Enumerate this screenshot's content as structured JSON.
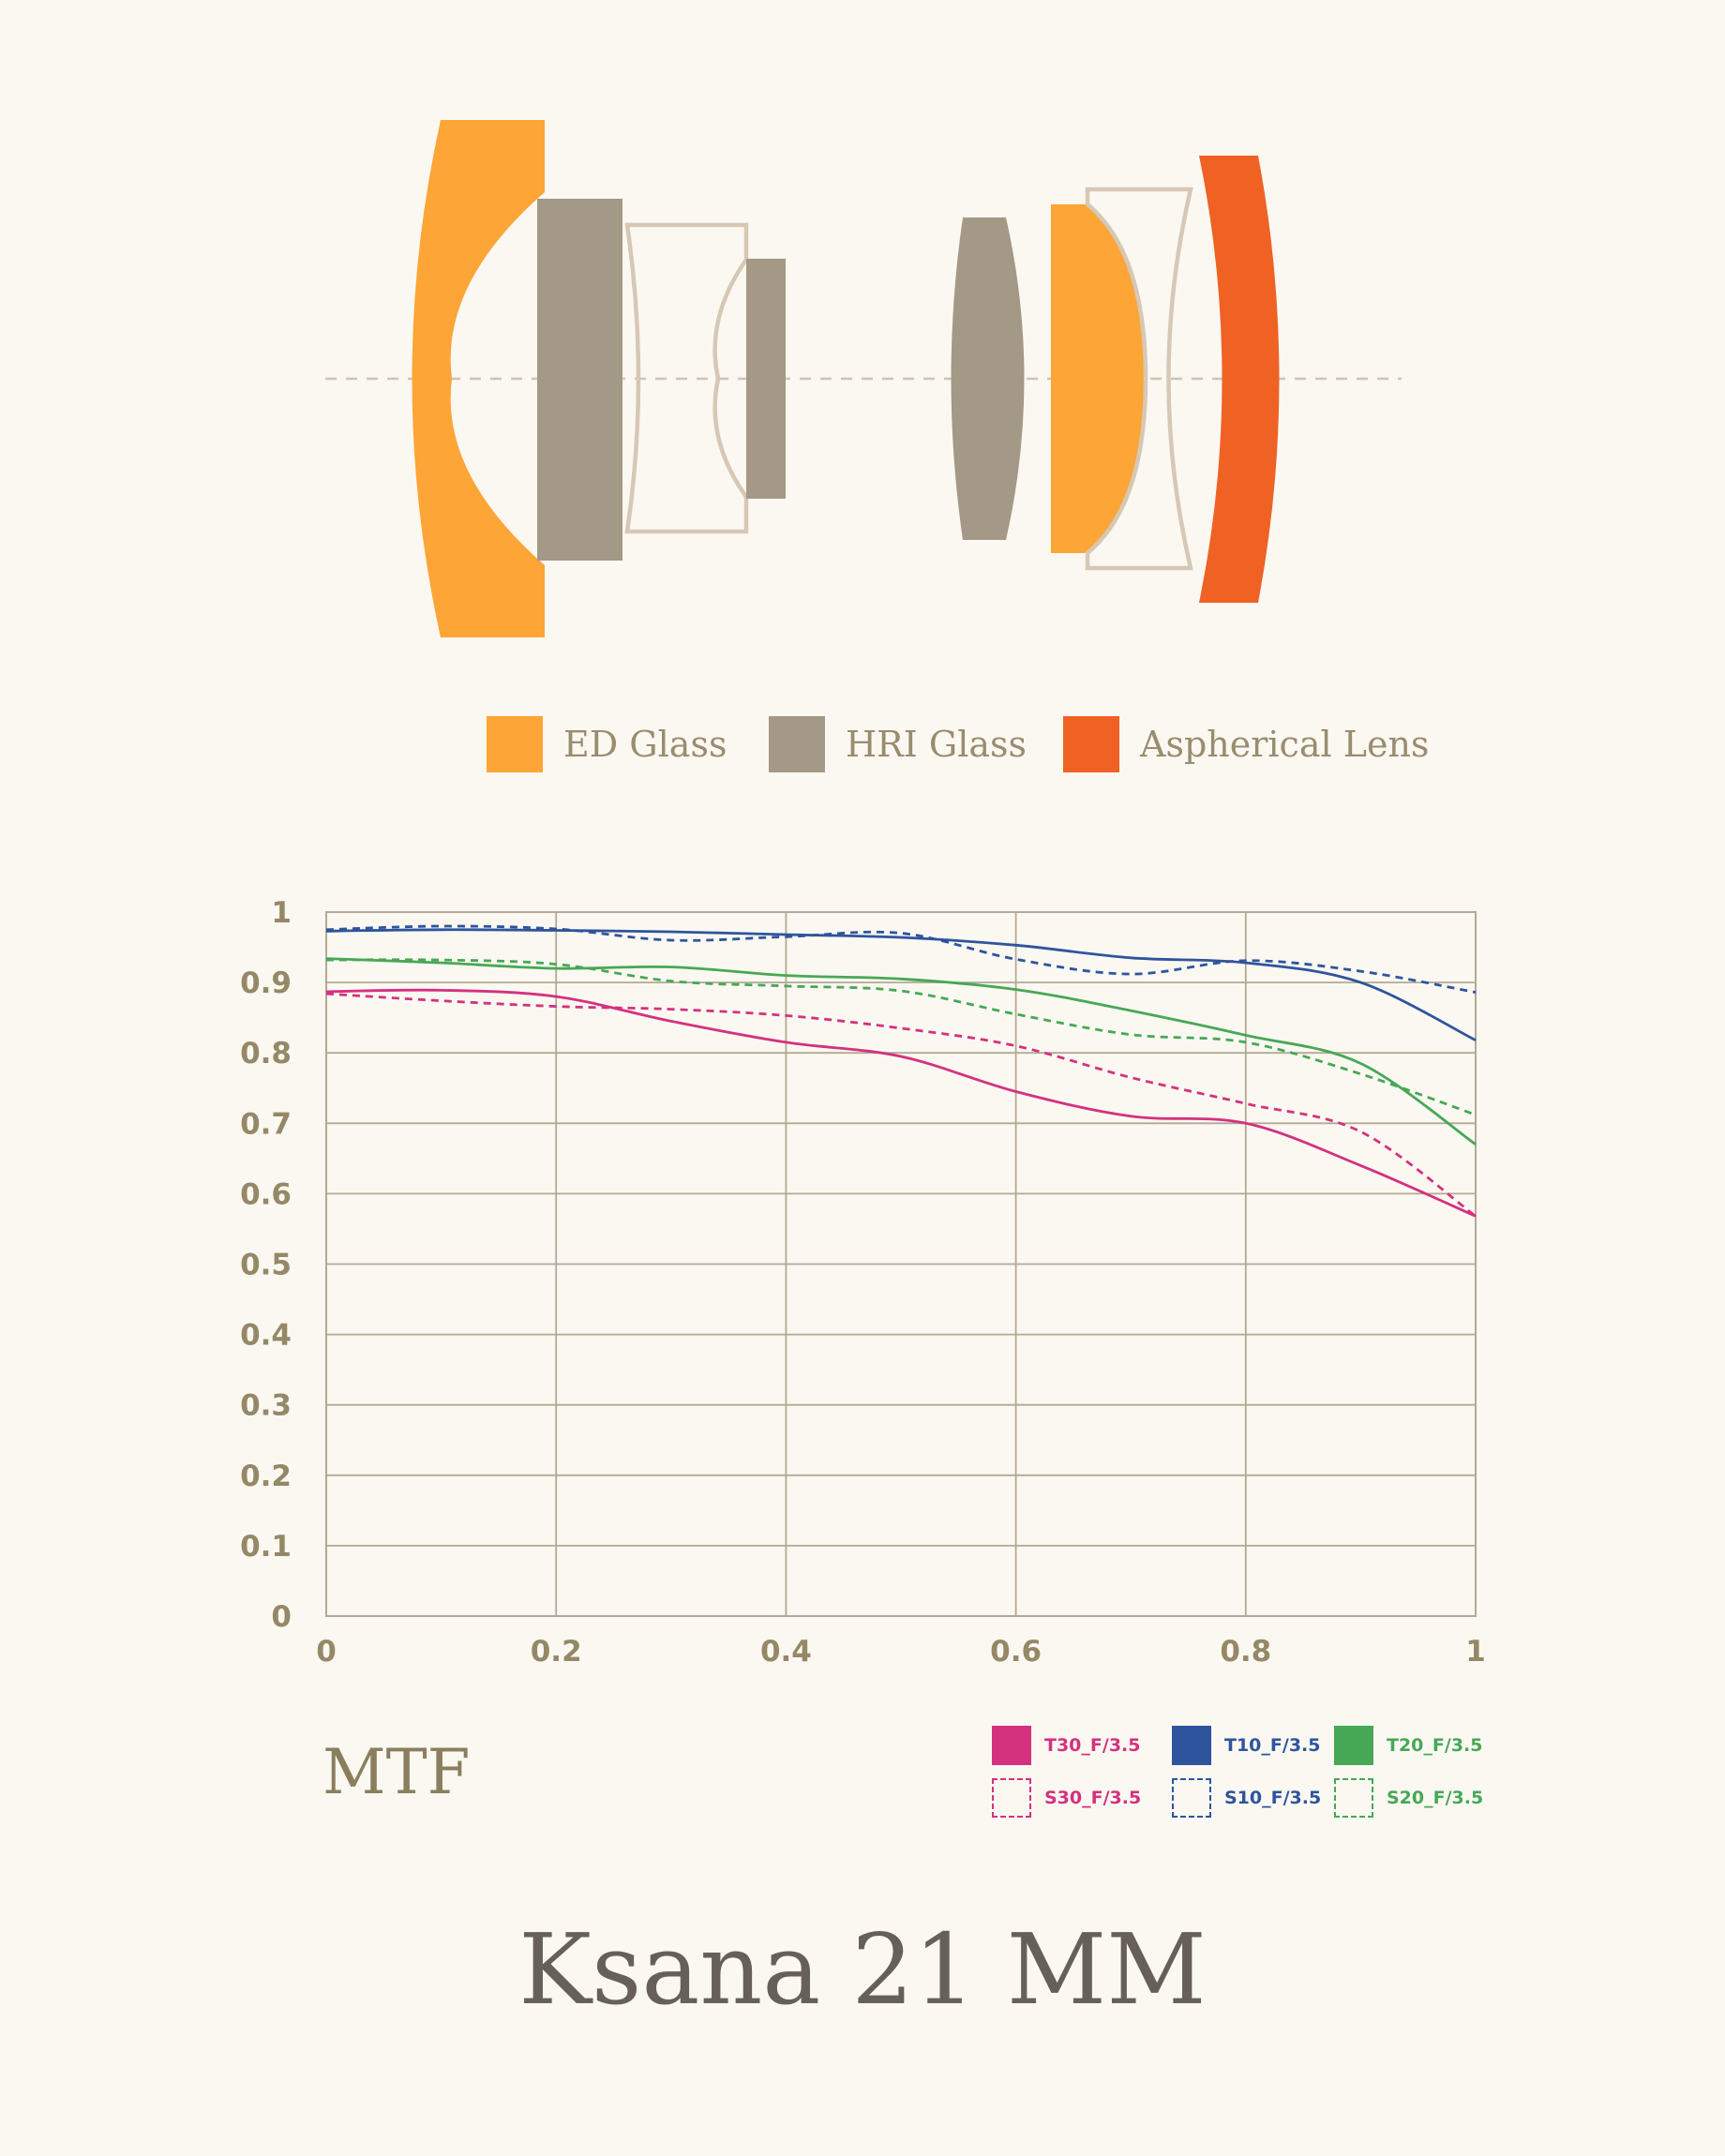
{
  "lens_legend": [
    {
      "label": "ED Glass",
      "color": "#fda536"
    },
    {
      "label": "HRI Glass",
      "color": "#a49886"
    },
    {
      "label": "Aspherical Lens",
      "color": "#ef6224"
    }
  ],
  "lens_outline_color": "#d6c8b4",
  "mtf_title": "MTF",
  "product_title": "Ksana 21 MM",
  "chart_data": {
    "type": "line",
    "title": "MTF",
    "xlabel": "",
    "ylabel": "",
    "xlim": [
      0,
      1
    ],
    "ylim": [
      0,
      1
    ],
    "x_ticks": [
      "0",
      "0.2",
      "0.4",
      "0.6",
      "0.8",
      "1"
    ],
    "y_ticks": [
      "0",
      "0.1",
      "0.2",
      "0.3",
      "0.4",
      "0.5",
      "0.6",
      "0.7",
      "0.8",
      "0.9",
      "1"
    ],
    "grid": true,
    "legend_position": "bottom-right",
    "x": [
      0,
      0.1,
      0.2,
      0.3,
      0.4,
      0.5,
      0.6,
      0.7,
      0.8,
      0.9,
      1.0
    ],
    "series": [
      {
        "name": "T30_F/3.5",
        "color": "#d4317f",
        "dashed": false,
        "values": [
          0.887,
          0.889,
          0.88,
          0.845,
          0.815,
          0.795,
          0.745,
          0.71,
          0.7,
          0.64,
          0.568
        ]
      },
      {
        "name": "T10_F/3.5",
        "color": "#2e549d",
        "dashed": false,
        "values": [
          0.973,
          0.975,
          0.974,
          0.972,
          0.968,
          0.964,
          0.953,
          0.935,
          0.928,
          0.9,
          0.818
        ]
      },
      {
        "name": "T20_F/3.5",
        "color": "#47a855",
        "dashed": false,
        "values": [
          0.934,
          0.928,
          0.92,
          0.922,
          0.91,
          0.905,
          0.89,
          0.86,
          0.825,
          0.785,
          0.67
        ]
      },
      {
        "name": "S30_F/3.5",
        "color": "#d4317f",
        "dashed": true,
        "values": [
          0.884,
          0.874,
          0.866,
          0.862,
          0.853,
          0.835,
          0.81,
          0.765,
          0.728,
          0.688,
          0.568
        ]
      },
      {
        "name": "S10_F/3.5",
        "color": "#2e549d",
        "dashed": true,
        "values": [
          0.975,
          0.98,
          0.976,
          0.96,
          0.965,
          0.97,
          0.933,
          0.912,
          0.931,
          0.916,
          0.886
        ]
      },
      {
        "name": "S20_F/3.5",
        "color": "#47a855",
        "dashed": true,
        "values": [
          0.932,
          0.932,
          0.926,
          0.902,
          0.895,
          0.888,
          0.855,
          0.826,
          0.815,
          0.77,
          0.712
        ]
      }
    ]
  }
}
